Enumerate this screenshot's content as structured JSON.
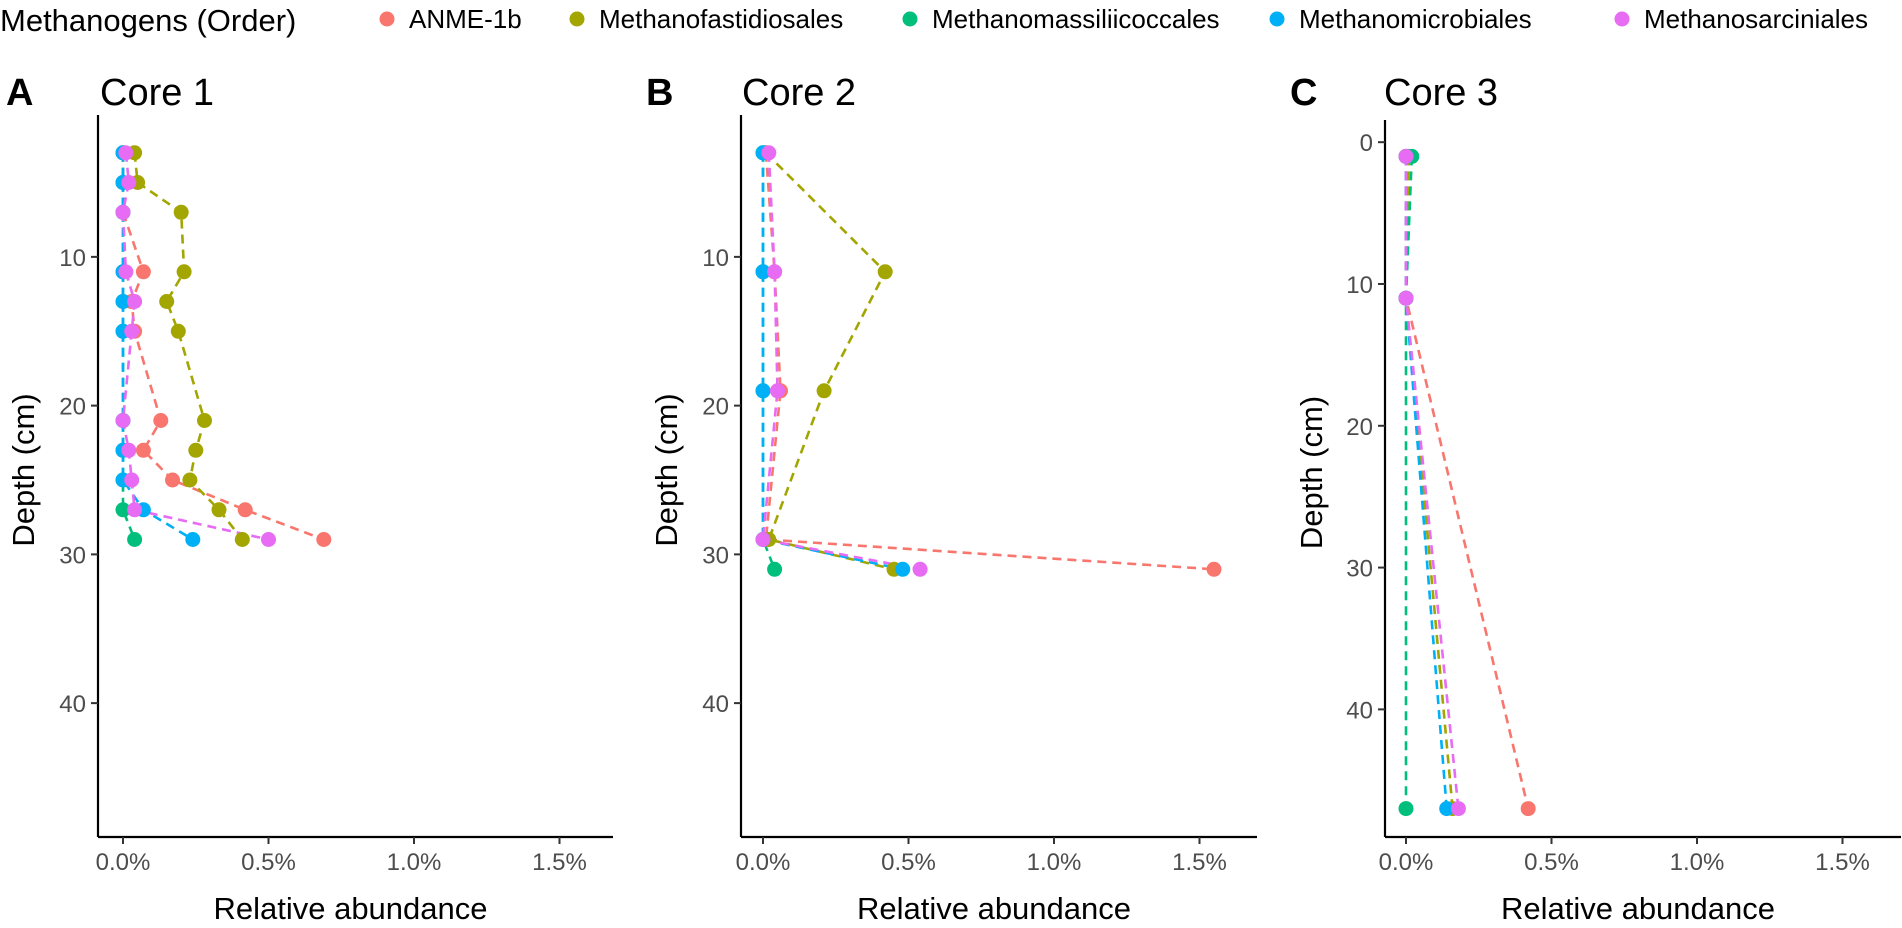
{
  "legend": {
    "title": "Methanogens (Order)",
    "items": [
      {
        "label": "ANME-1b",
        "color": "#F8766D"
      },
      {
        "label": "Methanofastidiosales",
        "color": "#A3A500"
      },
      {
        "label": "Methanomassiliicoccales",
        "color": "#00BF7D"
      },
      {
        "label": "Methanomicrobiales",
        "color": "#00B0F6"
      },
      {
        "label": "Methanosarciniales",
        "color": "#E76BF3"
      }
    ]
  },
  "chart_data": [
    {
      "type": "line",
      "panel": "A",
      "title": "Core 1",
      "xlabel": "Relative abundance",
      "ylabel": "Depth (cm)",
      "xlim": [
        0,
        1.65
      ],
      "ylim": [
        1,
        49
      ],
      "y_reversed": true,
      "xticks": [
        {
          "value": 0,
          "label": "0.0%"
        },
        {
          "value": 0.5,
          "label": "0.5%"
        },
        {
          "value": 1.0,
          "label": "1.0%"
        },
        {
          "value": 1.5,
          "label": "1.5%"
        }
      ],
      "yticks": [
        {
          "value": 10,
          "label": "10"
        },
        {
          "value": 20,
          "label": "20"
        },
        {
          "value": 30,
          "label": "30"
        },
        {
          "value": 40,
          "label": "40"
        }
      ],
      "series": [
        {
          "name": "ANME-1b",
          "color": "#F8766D",
          "points": [
            [
              0.0,
              3
            ],
            [
              0.0,
              5
            ],
            [
              0.0,
              7
            ],
            [
              0.07,
              11
            ],
            [
              0.03,
              13
            ],
            [
              0.04,
              15
            ],
            [
              0.13,
              21
            ],
            [
              0.07,
              23
            ],
            [
              0.17,
              25
            ],
            [
              0.42,
              27
            ],
            [
              0.69,
              29
            ]
          ]
        },
        {
          "name": "Methanofastidiosales",
          "color": "#A3A500",
          "points": [
            [
              0.04,
              3
            ],
            [
              0.05,
              5
            ],
            [
              0.2,
              7
            ],
            [
              0.21,
              11
            ],
            [
              0.15,
              13
            ],
            [
              0.19,
              15
            ],
            [
              0.28,
              21
            ],
            [
              0.25,
              23
            ],
            [
              0.23,
              25
            ],
            [
              0.33,
              27
            ],
            [
              0.41,
              29
            ]
          ]
        },
        {
          "name": "Methanomassiliicoccales",
          "color": "#00BF7D",
          "points": [
            [
              0.0,
              3
            ],
            [
              0.0,
              5
            ],
            [
              0.0,
              7
            ],
            [
              0.0,
              11
            ],
            [
              0.0,
              13
            ],
            [
              0.0,
              15
            ],
            [
              0.0,
              21
            ],
            [
              0.0,
              23
            ],
            [
              0.0,
              25
            ],
            [
              0.0,
              27
            ],
            [
              0.04,
              29
            ]
          ]
        },
        {
          "name": "Methanomicrobiales",
          "color": "#00B0F6",
          "points": [
            [
              0.0,
              3
            ],
            [
              0.0,
              5
            ],
            [
              0.0,
              7
            ],
            [
              0.0,
              11
            ],
            [
              0.0,
              13
            ],
            [
              0.0,
              15
            ],
            [
              0.0,
              21
            ],
            [
              0.0,
              23
            ],
            [
              0.0,
              25
            ],
            [
              0.07,
              27
            ],
            [
              0.24,
              29
            ]
          ]
        },
        {
          "name": "Methanosarciniales",
          "color": "#E76BF3",
          "points": [
            [
              0.01,
              3
            ],
            [
              0.02,
              5
            ],
            [
              0.0,
              7
            ],
            [
              0.01,
              11
            ],
            [
              0.04,
              13
            ],
            [
              0.03,
              15
            ],
            [
              0.0,
              21
            ],
            [
              0.02,
              23
            ],
            [
              0.03,
              25
            ],
            [
              0.04,
              27
            ],
            [
              0.5,
              29
            ]
          ]
        }
      ]
    },
    {
      "type": "line",
      "panel": "B",
      "title": "Core 2",
      "xlabel": "Relative abundance",
      "ylabel": "Depth (cm)",
      "xlim": [
        0,
        1.65
      ],
      "ylim": [
        1,
        49
      ],
      "y_reversed": true,
      "xticks": [
        {
          "value": 0,
          "label": "0.0%"
        },
        {
          "value": 0.5,
          "label": "0.5%"
        },
        {
          "value": 1.0,
          "label": "1.0%"
        },
        {
          "value": 1.5,
          "label": "1.5%"
        }
      ],
      "yticks": [
        {
          "value": 10,
          "label": "10"
        },
        {
          "value": 20,
          "label": "20"
        },
        {
          "value": 30,
          "label": "30"
        },
        {
          "value": 40,
          "label": "40"
        }
      ],
      "series": [
        {
          "name": "ANME-1b",
          "color": "#F8766D",
          "points": [
            [
              0.01,
              3
            ],
            [
              0.04,
              11
            ],
            [
              0.06,
              19
            ],
            [
              0.01,
              29
            ],
            [
              1.55,
              31
            ]
          ]
        },
        {
          "name": "Methanofastidiosales",
          "color": "#A3A500",
          "points": [
            [
              0.01,
              3
            ],
            [
              0.42,
              11
            ],
            [
              0.21,
              19
            ],
            [
              0.02,
              29
            ],
            [
              0.45,
              31
            ]
          ]
        },
        {
          "name": "Methanomassiliicoccales",
          "color": "#00BF7D",
          "points": [
            [
              0.0,
              3
            ],
            [
              0.0,
              11
            ],
            [
              0.0,
              19
            ],
            [
              0.0,
              29
            ],
            [
              0.04,
              31
            ]
          ]
        },
        {
          "name": "Methanomicrobiales",
          "color": "#00B0F6",
          "points": [
            [
              0.0,
              3
            ],
            [
              0.0,
              11
            ],
            [
              0.0,
              19
            ],
            [
              0.0,
              29
            ],
            [
              0.48,
              31
            ]
          ]
        },
        {
          "name": "Methanosarciniales",
          "color": "#E76BF3",
          "points": [
            [
              0.02,
              3
            ],
            [
              0.04,
              11
            ],
            [
              0.05,
              19
            ],
            [
              0.0,
              29
            ],
            [
              0.54,
              31
            ]
          ]
        }
      ]
    },
    {
      "type": "line",
      "panel": "C",
      "title": "Core 3",
      "xlabel": "Relative abundance",
      "ylabel": "Depth (cm)",
      "xlim": [
        0,
        1.65
      ],
      "ylim": [
        -1,
        49
      ],
      "y_reversed": true,
      "xticks": [
        {
          "value": 0,
          "label": "0.0%"
        },
        {
          "value": 0.5,
          "label": "0.5%"
        },
        {
          "value": 1.0,
          "label": "1.0%"
        },
        {
          "value": 1.5,
          "label": "1.5%"
        }
      ],
      "yticks": [
        {
          "value": 0,
          "label": "0"
        },
        {
          "value": 10,
          "label": "10"
        },
        {
          "value": 20,
          "label": "20"
        },
        {
          "value": 30,
          "label": "30"
        },
        {
          "value": 40,
          "label": "40"
        }
      ],
      "series": [
        {
          "name": "ANME-1b",
          "color": "#F8766D",
          "points": [
            [
              0.0,
              1
            ],
            [
              0.0,
              11
            ],
            [
              0.42,
              47
            ]
          ]
        },
        {
          "name": "Methanofastidiosales",
          "color": "#A3A500",
          "points": [
            [
              0.01,
              1
            ],
            [
              0.0,
              11
            ],
            [
              0.16,
              47
            ]
          ]
        },
        {
          "name": "Methanomassiliicoccales",
          "color": "#00BF7D",
          "points": [
            [
              0.02,
              1
            ],
            [
              0.0,
              11
            ],
            [
              0.0,
              47
            ]
          ]
        },
        {
          "name": "Methanomicrobiales",
          "color": "#00B0F6",
          "points": [
            [
              0.0,
              1
            ],
            [
              0.0,
              11
            ],
            [
              0.14,
              47
            ]
          ]
        },
        {
          "name": "Methanosarciniales",
          "color": "#E76BF3",
          "points": [
            [
              0.0,
              1
            ],
            [
              0.0,
              11
            ],
            [
              0.18,
              47
            ]
          ]
        }
      ]
    }
  ]
}
